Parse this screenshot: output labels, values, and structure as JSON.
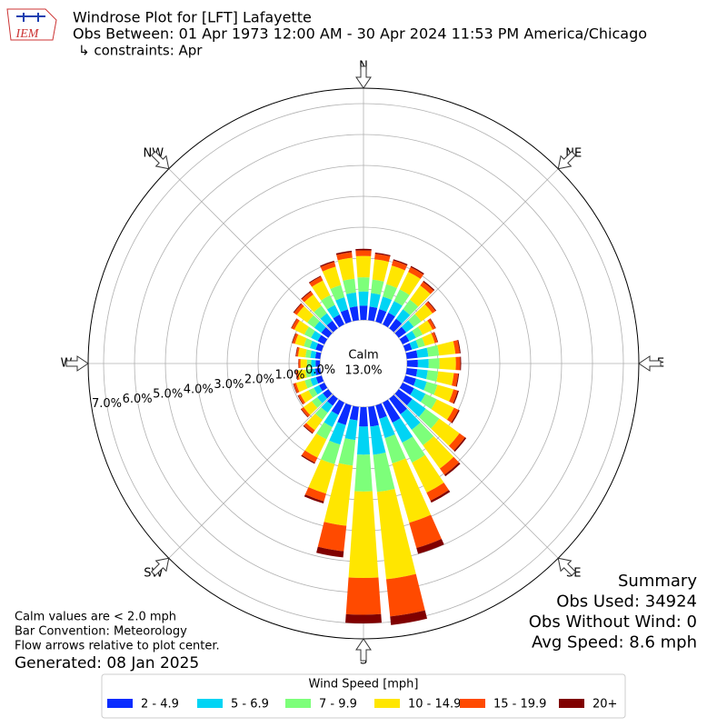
{
  "chart_data": {
    "type": "windrose",
    "logo_text": "IEM",
    "title": "Windrose Plot for [LFT] Lafayette",
    "subtitle": "Obs Between: 01 Apr 1973 12:00 AM - 30 Apr 2024 11:53 PM America/Chicago",
    "constraint": "↳ constraints: Apr",
    "direction_labels": [
      "N",
      "NE",
      "E",
      "SE",
      "S",
      "SW",
      "W",
      "NW"
    ],
    "theta": [
      10,
      20,
      30,
      40,
      50,
      60,
      70,
      80,
      90,
      100,
      110,
      120,
      130,
      140,
      150,
      160,
      170,
      180,
      190,
      200,
      210,
      220,
      230,
      240,
      250,
      260,
      270,
      280,
      290,
      300,
      310,
      320,
      330,
      340,
      350,
      360
    ],
    "calm": {
      "name": "Calm",
      "value": 13,
      "value_label": "13.0%"
    },
    "rlim": [
      0,
      7.5
    ],
    "rticks": [
      {
        "value": 0,
        "label": "0.0%"
      },
      {
        "value": 1,
        "label": "1.0%"
      },
      {
        "value": 2,
        "label": "2.0%"
      },
      {
        "value": 3,
        "label": "3.0%"
      },
      {
        "value": 4,
        "label": "4.0%"
      },
      {
        "value": 5,
        "label": "5.0%"
      },
      {
        "value": 6,
        "label": "6.0%"
      },
      {
        "value": 7,
        "label": "7.0%"
      }
    ],
    "grid": true,
    "legend_title": "Wind Speed [mph]",
    "series": [
      {
        "name": "2 - 4.9",
        "color": "#0a2cff",
        "values": [
          0.44,
          0.42,
          0.42,
          0.38,
          0.3,
          0.24,
          0.22,
          0.35,
          0.35,
          0.34,
          0.36,
          0.41,
          0.54,
          0.62,
          0.72,
          0.45,
          0.64,
          0.63,
          0.44,
          0.66,
          0.44,
          0.28,
          0.22,
          0.19,
          0.19,
          0.16,
          0.14,
          0.16,
          0.2,
          0.24,
          0.28,
          0.3,
          0.35,
          0.41,
          0.45,
          0.46
        ]
      },
      {
        "name": "5 - 6.9",
        "color": "#00d4f4",
        "values": [
          0.44,
          0.42,
          0.42,
          0.38,
          0.3,
          0.24,
          0.22,
          0.35,
          0.35,
          0.34,
          0.36,
          0.41,
          0.54,
          0.62,
          0.72,
          0.65,
          0.92,
          0.91,
          0.64,
          0.66,
          0.44,
          0.28,
          0.22,
          0.19,
          0.19,
          0.16,
          0.14,
          0.16,
          0.2,
          0.24,
          0.28,
          0.3,
          0.35,
          0.41,
          0.45,
          0.46
        ]
      },
      {
        "name": "7 - 9.9",
        "color": "#7dff7a",
        "values": [
          0.44,
          0.42,
          0.42,
          0.38,
          0.3,
          0.24,
          0.22,
          0.35,
          0.35,
          0.34,
          0.36,
          0.41,
          0.54,
          0.62,
          0.72,
          0.85,
          1.21,
          1.19,
          0.83,
          0.66,
          0.44,
          0.28,
          0.22,
          0.19,
          0.19,
          0.16,
          0.14,
          0.16,
          0.2,
          0.24,
          0.28,
          0.3,
          0.35,
          0.41,
          0.45,
          0.46
        ]
      },
      {
        "name": "10 - 14.9",
        "color": "#ffe600",
        "values": [
          0.66,
          0.63,
          0.63,
          0.57,
          0.45,
          0.36,
          0.33,
          0.53,
          0.53,
          0.51,
          0.54,
          0.62,
          0.81,
          0.93,
          1.08,
          2.0,
          2.84,
          2.8,
          1.96,
          0.99,
          0.66,
          0.42,
          0.33,
          0.29,
          0.29,
          0.24,
          0.21,
          0.24,
          0.3,
          0.36,
          0.42,
          0.45,
          0.53,
          0.62,
          0.68,
          0.69
        ]
      },
      {
        "name": "15 - 19.9",
        "color": "#ff4a00",
        "values": [
          0.18,
          0.17,
          0.17,
          0.15,
          0.12,
          0.1,
          0.09,
          0.14,
          0.14,
          0.14,
          0.14,
          0.16,
          0.22,
          0.25,
          0.29,
          0.85,
          1.21,
          1.19,
          0.83,
          0.26,
          0.18,
          0.11,
          0.09,
          0.08,
          0.08,
          0.06,
          0.06,
          0.06,
          0.08,
          0.1,
          0.11,
          0.12,
          0.14,
          0.16,
          0.18,
          0.18
        ]
      },
      {
        "name": "20+",
        "color": "#800000",
        "values": [
          0.04,
          0.04,
          0.04,
          0.04,
          0.03,
          0.02,
          0.02,
          0.03,
          0.03,
          0.03,
          0.04,
          0.04,
          0.05,
          0.06,
          0.07,
          0.2,
          0.28,
          0.28,
          0.2,
          0.07,
          0.04,
          0.03,
          0.02,
          0.02,
          0.02,
          0.02,
          0.01,
          0.02,
          0.02,
          0.02,
          0.03,
          0.03,
          0.03,
          0.04,
          0.05,
          0.05
        ]
      }
    ],
    "summary": [
      "Summary",
      "Obs Used: 34924",
      "Obs Without Wind: 0",
      "Avg Speed: 8.6 mph"
    ],
    "notes": [
      "Calm values are < 2.0 mph",
      "Bar Convention: Meteorology",
      "Flow arrows relative to plot center."
    ],
    "generated": "Generated: 08 Jan 2025"
  }
}
